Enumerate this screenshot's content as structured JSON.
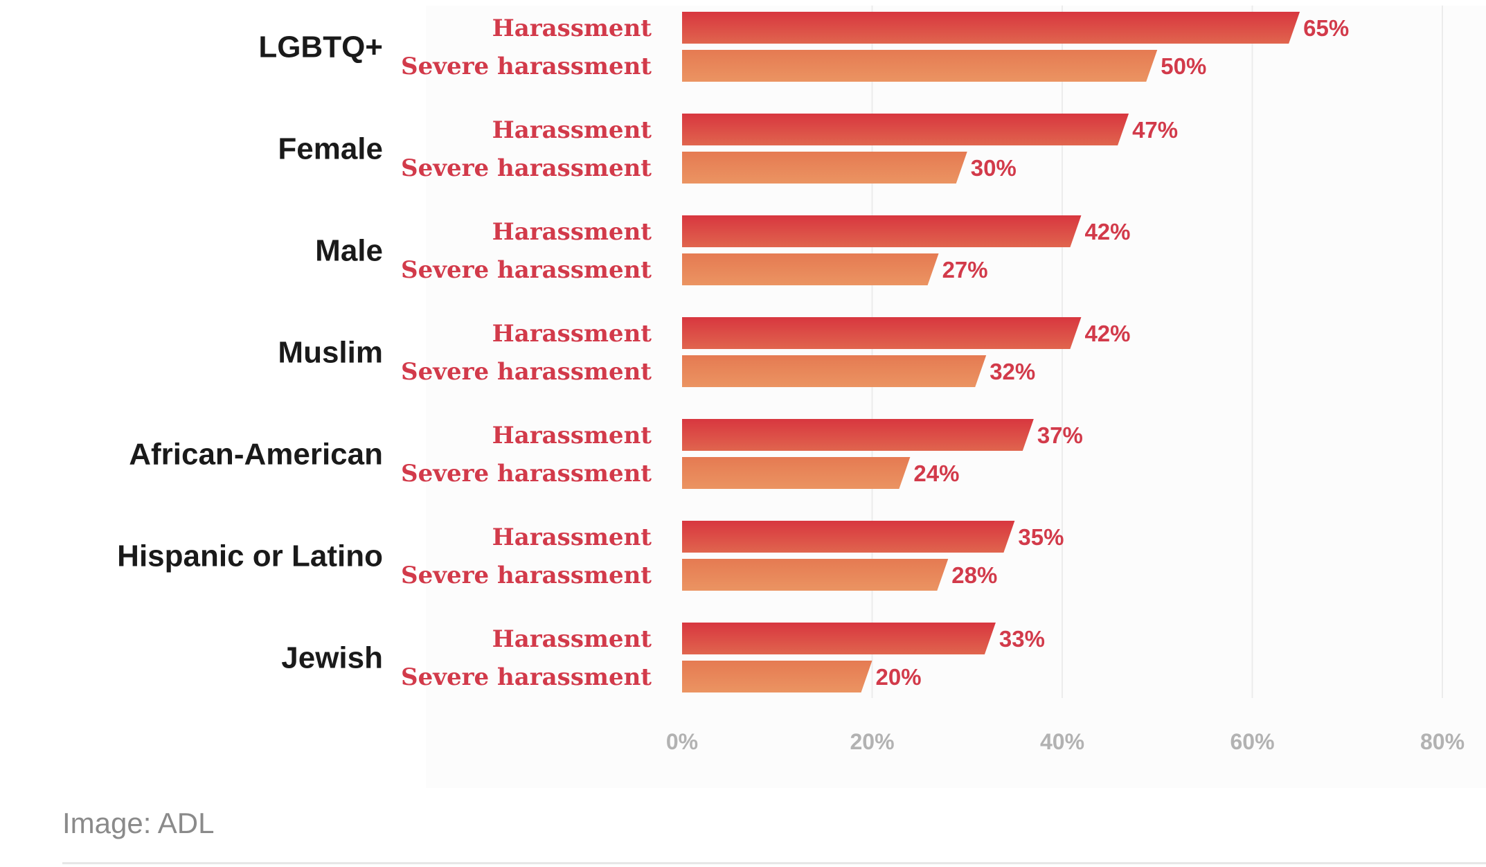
{
  "chart_data": {
    "type": "bar",
    "orientation": "horizontal",
    "categories": [
      "LGBTQ+",
      "Female",
      "Male",
      "Muslim",
      "African-American",
      "Hispanic or Latino",
      "Jewish"
    ],
    "series": [
      {
        "name": "Harassment",
        "values": [
          65,
          47,
          42,
          42,
          37,
          35,
          33
        ],
        "labels": [
          "65%",
          "47%",
          "42%",
          "42%",
          "37%",
          "35%",
          "33%"
        ],
        "color": "#d94248"
      },
      {
        "name": "Severe harassment",
        "values": [
          50,
          30,
          27,
          32,
          24,
          28,
          20
        ],
        "labels": [
          "50%",
          "30%",
          "27%",
          "32%",
          "24%",
          "28%",
          "20%"
        ],
        "color": "#e8865a"
      }
    ],
    "xlim": [
      0,
      80
    ],
    "xticks": [
      0,
      20,
      40,
      60,
      80
    ],
    "xtick_labels": [
      "0%",
      "20%",
      "40%",
      "60%",
      "80%"
    ],
    "grid": true,
    "title": "",
    "xlabel": "",
    "ylabel": ""
  },
  "caption": "Image: ADL"
}
